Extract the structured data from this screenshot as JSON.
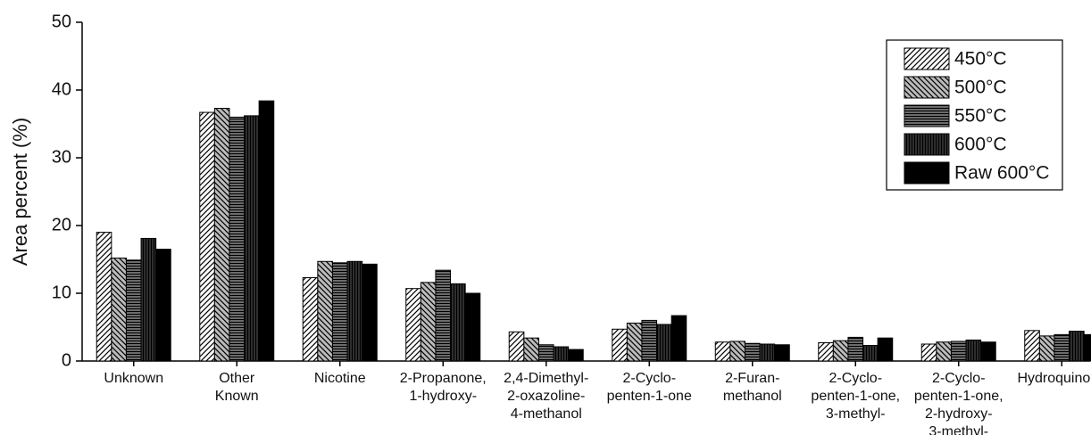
{
  "chart_data": {
    "type": "bar",
    "y_label": "Area percent (%)",
    "categories": [
      "Unknown",
      "Other\nKnown",
      "Nicotine",
      "2-Propanone,\n1-hydroxy-",
      "2,4-Dimethyl-\n2-oxazoline-\n4-methanol",
      "2-Cyclo-\npenten-1-one",
      "2-Furan-\nmethanol",
      "2-Cyclo-\npenten-1-one,\n3-methyl-",
      "2-Cyclo-\npenten-1-one,\n2-hydroxy-\n3-methyl-",
      "Hydroquinone"
    ],
    "series": [
      {
        "name": "450°C",
        "color": "#ffffff",
        "hatch": "diagonal",
        "values": [
          19.0,
          36.7,
          12.3,
          10.7,
          4.3,
          4.7,
          2.8,
          2.7,
          2.5,
          4.5
        ]
      },
      {
        "name": "500°C",
        "color": "#bbbbbb",
        "hatch": "backslash",
        "values": [
          15.2,
          37.3,
          14.7,
          11.6,
          3.4,
          5.6,
          2.9,
          3.0,
          2.8,
          3.7
        ]
      },
      {
        "name": "550°C",
        "color": "#777777",
        "hatch": "horizontal",
        "values": [
          14.9,
          36.0,
          14.5,
          13.4,
          2.4,
          6.0,
          2.6,
          3.5,
          2.9,
          3.9
        ]
      },
      {
        "name": "600°C",
        "color": "#333333",
        "hatch": "vertical",
        "values": [
          18.1,
          36.2,
          14.7,
          11.4,
          2.1,
          5.4,
          2.5,
          2.3,
          3.1,
          4.4
        ]
      },
      {
        "name": "Raw 600°C",
        "color": "#000000",
        "hatch": "none",
        "values": [
          16.5,
          38.4,
          14.3,
          10.0,
          1.7,
          6.7,
          2.4,
          3.4,
          2.8,
          3.9
        ]
      }
    ],
    "ylim": [
      0,
      50
    ],
    "yticks": [
      0,
      10,
      20,
      30,
      40,
      50
    ],
    "grid": false,
    "legend": "top-right"
  }
}
